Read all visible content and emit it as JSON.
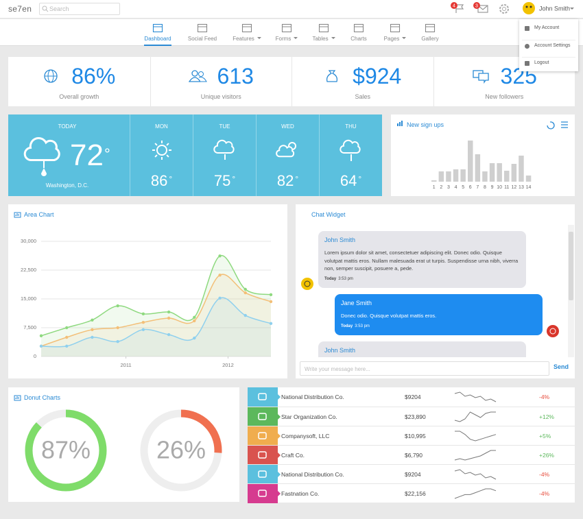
{
  "header": {
    "logo": "se7en",
    "search_placeholder": "Search",
    "notifications": [
      "4",
      "3"
    ],
    "user": "John Smith"
  },
  "nav": [
    {
      "label": "Dashboard",
      "active": true
    },
    {
      "label": "Social Feed"
    },
    {
      "label": "Features",
      "dropdown": true
    },
    {
      "label": "Forms",
      "dropdown": true
    },
    {
      "label": "Tables",
      "dropdown": true
    },
    {
      "label": "Charts"
    },
    {
      "label": "Pages",
      "dropdown": true
    },
    {
      "label": "Gallery"
    }
  ],
  "user_menu": [
    "My Account",
    "Account Settings",
    "Logout"
  ],
  "stats": [
    {
      "value": "86%",
      "label": "Overall growth"
    },
    {
      "value": "613",
      "label": "Unique visitors"
    },
    {
      "value": "$924",
      "label": "Sales"
    },
    {
      "value": "325",
      "label": "New followers"
    }
  ],
  "weather": {
    "today": {
      "label": "TODAY",
      "temp": "72",
      "place": "Washington, D.C."
    },
    "degree": "°",
    "days": [
      {
        "day": "MON",
        "temp": "86"
      },
      {
        "day": "TUE",
        "temp": "75"
      },
      {
        "day": "WED",
        "temp": "82"
      },
      {
        "day": "THU",
        "temp": "64"
      }
    ]
  },
  "chart_data": [
    {
      "type": "bar",
      "title": "New sign ups",
      "color": "#cfcfcf",
      "categories": [
        "1",
        "2",
        "3",
        "4",
        "5",
        "6",
        "7",
        "8",
        "9",
        "10",
        "11",
        "12",
        "13",
        "14"
      ],
      "values": [
        2,
        15,
        15,
        18,
        18,
        60,
        40,
        15,
        27,
        27,
        16,
        26,
        38,
        9
      ]
    },
    {
      "type": "area",
      "title": "Area Chart",
      "grid": true,
      "x": [
        2010.17,
        2010.42,
        2010.67,
        2010.92,
        2011.17,
        2011.42,
        2011.67,
        2011.92,
        2012.17,
        2012.42
      ],
      "xlim": [
        2010.17,
        2012.42
      ],
      "xticks": [
        2011,
        2012
      ],
      "ylim": [
        0,
        30000
      ],
      "yticks": [
        0,
        {
          "value": 7500,
          "label": "7,500"
        },
        {
          "value": 15000,
          "label": "15,000"
        },
        {
          "value": 22500,
          "label": "22,500"
        },
        {
          "value": 30000,
          "label": "30,000"
        }
      ],
      "series": [
        {
          "color": "#8ed97f",
          "values": [
            5400,
            7500,
            9500,
            13200,
            11100,
            11600,
            10200,
            26200,
            17500,
            16100
          ]
        },
        {
          "color": "#f3bf78",
          "values": [
            2700,
            5000,
            7000,
            7500,
            8900,
            10000,
            9300,
            21200,
            16600,
            14300
          ]
        },
        {
          "color": "#8fd0ee",
          "values": [
            2700,
            2700,
            5000,
            3900,
            7000,
            5700,
            4800,
            15200,
            10700,
            8600
          ]
        }
      ]
    },
    {
      "type": "donut",
      "title": "Donut Charts",
      "values": [
        87,
        26
      ],
      "value_labels": [
        "87%",
        "26%"
      ],
      "colors": [
        "#7fdc6a",
        "#f07050"
      ],
      "track_color": "#eeeeee"
    }
  ],
  "chat": {
    "title": "Chat Widget",
    "messages": [
      {
        "side": "left",
        "name": "John Smith",
        "text": "Lorem ipsum dolor sit amet, consectetuer adipiscing elit. Donec odio. Quisque volutpat mattis eros. Nullam malesuada erat ut turpis. Suspendisse urna nibh, viverra non, semper suscipit, posuere a, pede.",
        "day": "Today",
        "time": "3:53 pm"
      },
      {
        "side": "right",
        "name": "Jane Smith",
        "text": "Donec odio. Quisque volutpat mattis eros.",
        "day": "Today",
        "time": "3:53 pm"
      },
      {
        "side": "left",
        "name": "John Smith"
      }
    ],
    "placeholder": "Write your message here...",
    "send": "Send"
  },
  "table": {
    "rows": [
      {
        "icon_color": "#5bc0de",
        "company": "National Distribution Co.",
        "amount": "$9204",
        "trend": [
          8,
          9,
          6,
          7,
          5,
          6,
          3,
          4,
          2
        ],
        "change": "-4%",
        "change_color": "#e74c3c"
      },
      {
        "icon_color": "#5cb85c",
        "company": "Star Organization Co.",
        "amount": "$23,890",
        "trend": [
          2,
          1,
          3,
          8,
          6,
          4,
          7,
          8,
          8
        ],
        "change": "+12%",
        "change_color": "#5cb85c"
      },
      {
        "icon_color": "#f0ad4e",
        "company": "Companysoft, LLC",
        "amount": "$10,995",
        "trend": [
          8,
          8,
          6,
          3,
          2,
          3,
          4,
          5,
          6
        ],
        "change": "+5%",
        "change_color": "#5cb85c"
      },
      {
        "icon_color": "#d9534f",
        "company": "Craft Co.",
        "amount": "$6,790",
        "trend": [
          1,
          2,
          1,
          2,
          3,
          4,
          6,
          8,
          8
        ],
        "change": "+26%",
        "change_color": "#5cb85c"
      },
      {
        "icon_color": "#5bc0de",
        "company": "National Distribution Co.",
        "amount": "$9204",
        "trend": [
          8,
          9,
          6,
          7,
          5,
          6,
          3,
          4,
          2
        ],
        "change": "-4%",
        "change_color": "#e74c3c"
      },
      {
        "icon_color": "#d63b8f",
        "company": "Fastnation Co.",
        "amount": "$22,156",
        "trend": [
          2,
          3,
          4,
          4,
          5,
          6,
          7,
          7,
          6
        ],
        "change": "-4%",
        "change_color": "#e74c3c"
      }
    ]
  }
}
